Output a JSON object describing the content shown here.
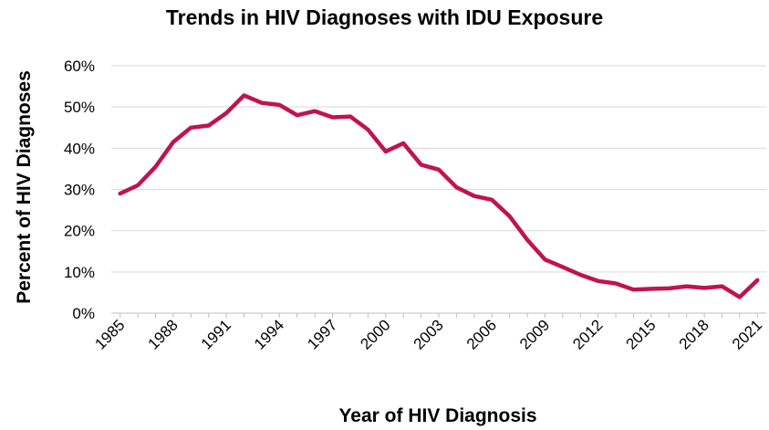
{
  "chart_data": {
    "type": "line",
    "title": "Trends in HIV Diagnoses with IDU Exposure",
    "xlabel": "Year of HIV Diagnosis",
    "ylabel": "Percent of HIV Diagnoses",
    "ylim": [
      0,
      60
    ],
    "y_ticks": [
      "0%",
      "10%",
      "20%",
      "30%",
      "40%",
      "50%",
      "60%"
    ],
    "x_ticks": [
      "1985",
      "1988",
      "1991",
      "1994",
      "1997",
      "2000",
      "2003",
      "2006",
      "2009",
      "2012",
      "2015",
      "2018",
      "2021"
    ],
    "grid": "horizontal",
    "line_color": "#C0144C",
    "series": [
      {
        "x": [
          1985,
          1986,
          1987,
          1988,
          1989,
          1990,
          1991,
          1992,
          1993,
          1994,
          1995,
          1996,
          1997,
          1998,
          1999,
          2000,
          2001,
          2002,
          2003,
          2004,
          2005,
          2006,
          2007,
          2008,
          2009,
          2010,
          2011,
          2012,
          2013,
          2014,
          2015,
          2016,
          2017,
          2018,
          2019,
          2020,
          2021
        ],
        "values": [
          29,
          31,
          35.5,
          41.5,
          45,
          45.5,
          48.5,
          52.8,
          51,
          50.5,
          48,
          49,
          47.5,
          47.7,
          44.5,
          39.2,
          41.2,
          36,
          34.8,
          30.5,
          28.4,
          27.5,
          23.5,
          17.8,
          13,
          11.2,
          9.3,
          7.8,
          7.2,
          5.7,
          5.9,
          6,
          6.5,
          6.1,
          6.5,
          3.9,
          8
        ]
      }
    ]
  }
}
